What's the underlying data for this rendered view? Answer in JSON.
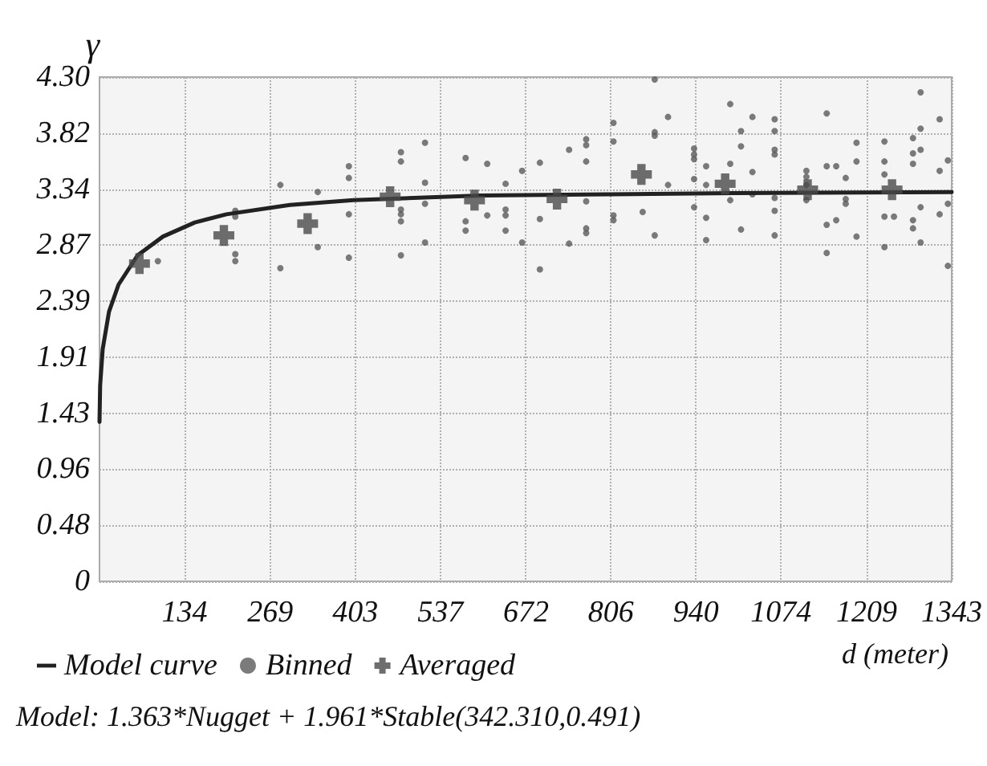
{
  "chart_data": {
    "type": "scatter",
    "xlabel": "d (meter)",
    "ylabel": "γ",
    "xlim": [
      0,
      1343
    ],
    "xticks": [
      134,
      269,
      403,
      537,
      672,
      806,
      940,
      1074,
      1209,
      1343
    ],
    "ylim": [
      0,
      4.3
    ],
    "yticks": [
      0,
      0.48,
      0.96,
      1.43,
      1.91,
      2.39,
      2.87,
      3.34,
      3.82,
      {
        "value": 4.3,
        "label": "4.30"
      }
    ],
    "grid": true,
    "legend": "bottom left",
    "annotations": [
      "Model: 1.363*Nugget + 1.961*Stable(342.310,0.491)"
    ],
    "series": [
      {
        "name": "Model curve",
        "type": "line",
        "marker": "none",
        "color": "#222222",
        "x": [
          0,
          1,
          5,
          15,
          30,
          60,
          100,
          150,
          200,
          300,
          400,
          600,
          800,
          1000,
          1343
        ],
        "values": [
          1.36,
          1.67,
          1.98,
          2.3,
          2.53,
          2.78,
          2.94,
          3.06,
          3.13,
          3.21,
          3.25,
          3.29,
          3.3,
          3.31,
          3.32
        ]
      },
      {
        "name": "Binned",
        "marker": "circle",
        "color": "#5a5a5a",
        "x": [
          92,
          214,
          214,
          214,
          214,
          285,
          285,
          344,
          344,
          393,
          393,
          393,
          393,
          475,
          475,
          475,
          475,
          475,
          475,
          513,
          513,
          513,
          513,
          577,
          577,
          577,
          611,
          611,
          640,
          640,
          640,
          640,
          666,
          666,
          694,
          694,
          694,
          740,
          740,
          767,
          767,
          767,
          767,
          767,
          767,
          810,
          810,
          810,
          810,
          856,
          875,
          875,
          875,
          875,
          896,
          896,
          937,
          937,
          937,
          937,
          937,
          956,
          956,
          956,
          956,
          994,
          994,
          994,
          1011,
          1011,
          1011,
          1029,
          1029,
          1029,
          1064,
          1064,
          1064,
          1064,
          1064,
          1064,
          1064,
          1114,
          1114,
          1114,
          1114,
          1146,
          1146,
          1146,
          1146,
          1161,
          1161,
          1176,
          1176,
          1176,
          1193,
          1193,
          1193,
          1237,
          1237,
          1237,
          1237,
          1237,
          1252,
          1282,
          1282,
          1282,
          1282,
          1282,
          1294,
          1294,
          1294,
          1294,
          1294,
          1324,
          1324,
          1324,
          1337,
          1337,
          1337
        ],
        "values": [
          2.73,
          3.16,
          3.11,
          2.79,
          2.73,
          3.38,
          2.67,
          3.32,
          2.85,
          3.54,
          3.44,
          3.13,
          2.76,
          3.66,
          3.58,
          3.17,
          3.13,
          3.07,
          2.78,
          3.74,
          3.4,
          3.22,
          2.89,
          3.61,
          3.07,
          2.99,
          3.56,
          3.12,
          3.39,
          3.17,
          3.12,
          2.99,
          3.5,
          2.89,
          3.57,
          3.09,
          2.66,
          3.68,
          2.88,
          3.77,
          3.72,
          3.58,
          3.24,
          3.01,
          2.97,
          3.91,
          3.75,
          3.12,
          3.08,
          3.15,
          4.28,
          3.83,
          3.8,
          2.95,
          3.96,
          3.38,
          3.69,
          3.64,
          3.6,
          3.43,
          3.19,
          3.54,
          3.38,
          3.1,
          2.91,
          4.07,
          3.56,
          3.25,
          3.84,
          3.71,
          3,
          3.96,
          3.49,
          3.3,
          3.94,
          3.84,
          3.68,
          3.64,
          3.27,
          3.16,
          2.95,
          3.5,
          3.45,
          3.38,
          3.25,
          3.99,
          3.54,
          3.04,
          2.8,
          3.54,
          3.08,
          3.44,
          3.26,
          3.22,
          3.74,
          3.58,
          2.94,
          3.75,
          3.58,
          3.47,
          3.11,
          2.85,
          3.11,
          3.78,
          3.65,
          3.56,
          3.08,
          3.01,
          4.17,
          3.86,
          3.68,
          3.19,
          2.89,
          3.94,
          3.5,
          3.13,
          3.59,
          3.22,
          2.69
        ]
      },
      {
        "name": "Averaged",
        "marker": "cross",
        "color": "#4a4a4a",
        "x": [
          63,
          196,
          328,
          458,
          591,
          721,
          854,
          986,
          1116,
          1249
        ],
        "values": [
          2.71,
          2.95,
          3.05,
          3.28,
          3.25,
          3.26,
          3.47,
          3.39,
          3.34,
          3.34
        ]
      }
    ]
  }
}
